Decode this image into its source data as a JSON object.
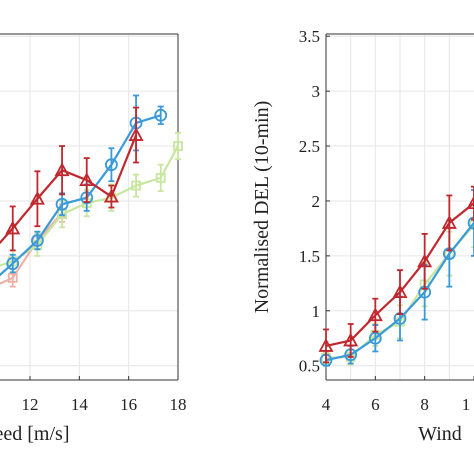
{
  "chart_data": [
    {
      "type": "line",
      "title": "",
      "xlabel": "eed [m/s]",
      "ylabel": "",
      "xlim": [
        8.3,
        18
      ],
      "ylim": [
        0.37,
        3.52
      ],
      "xticks": [
        "12",
        "14",
        "16",
        "18"
      ],
      "yticks": [],
      "grid": true,
      "series": [
        {
          "color": "#f0b0a8",
          "marker": "square",
          "points": [
            [
              10.3,
              1.2
            ],
            [
              11.3,
              1.3
            ],
            [
              12.3,
              1.64
            ],
            [
              13.3,
              1.89
            ]
          ],
          "err": [
            0.08,
            0.08,
            0.08,
            0.08
          ]
        },
        {
          "color": "#c8e6a0",
          "marker": "square",
          "points": [
            [
              10.3,
              1.38
            ],
            [
              11.3,
              1.45
            ],
            [
              12.3,
              1.6
            ],
            [
              13.3,
              1.88
            ],
            [
              14.3,
              1.98
            ],
            [
              15.3,
              2.03
            ],
            [
              16.3,
              2.14
            ],
            [
              17.3,
              2.21
            ],
            [
              18.0,
              2.5
            ]
          ],
          "err": [
            0.1,
            0.1,
            0.1,
            0.12,
            0.12,
            0.12,
            0.1,
            0.12,
            0.12
          ]
        },
        {
          "color": "#3a9ad9",
          "marker": "circle",
          "points": [
            [
              10.3,
              1.23
            ],
            [
              11.3,
              1.43
            ],
            [
              12.3,
              1.64
            ],
            [
              13.3,
              1.97
            ],
            [
              14.3,
              2.03
            ],
            [
              15.3,
              2.33
            ],
            [
              16.3,
              2.71
            ],
            [
              17.3,
              2.78
            ]
          ],
          "err": [
            0.08,
            0.08,
            0.08,
            0.1,
            0.12,
            0.15,
            0.25,
            0.08
          ]
        },
        {
          "color": "#c0282e",
          "marker": "triangle",
          "points": [
            [
              10.3,
              1.5
            ],
            [
              11.3,
              1.75
            ],
            [
              12.3,
              2.02
            ],
            [
              13.3,
              2.28
            ],
            [
              14.3,
              2.19
            ],
            [
              15.3,
              2.04
            ],
            [
              16.3,
              2.6
            ]
          ],
          "err": [
            0.15,
            0.2,
            0.25,
            0.22,
            0.2,
            0.1,
            0.25
          ]
        }
      ]
    },
    {
      "type": "line",
      "title": "",
      "xlabel": "Wind",
      "ylabel": "Normalised DEL  (10-min)",
      "xlim": [
        3.85,
        11.3
      ],
      "ylim": [
        0.37,
        3.52
      ],
      "xticks": [
        "4",
        "6",
        "8",
        "1"
      ],
      "yticks": [
        "0.5",
        "1",
        "1.5",
        "2",
        "2.5",
        "3",
        "3.5"
      ],
      "grid": true,
      "series": [
        {
          "color": "#c8e6a0",
          "marker": "square",
          "points": [
            [
              4,
              0.57
            ],
            [
              5,
              0.58
            ],
            [
              6,
              0.78
            ],
            [
              7,
              0.9
            ],
            [
              8,
              1.24
            ],
            [
              9,
              1.52
            ],
            [
              10,
              1.78
            ],
            [
              11,
              1.9
            ]
          ],
          "err": [
            0.05,
            0.07,
            0.1,
            0.15,
            0.2,
            0.2,
            0.2,
            0.2
          ]
        },
        {
          "color": "#3a9ad9",
          "marker": "circle",
          "points": [
            [
              4,
              0.55
            ],
            [
              5,
              0.6
            ],
            [
              6,
              0.75
            ],
            [
              7,
              0.93
            ],
            [
              8,
              1.17
            ],
            [
              9,
              1.52
            ],
            [
              10,
              1.8
            ],
            [
              11,
              1.9
            ]
          ],
          "err": [
            0.05,
            0.08,
            0.12,
            0.2,
            0.25,
            0.3,
            0.3,
            0.25
          ]
        },
        {
          "color": "#c0282e",
          "marker": "triangle",
          "points": [
            [
              4,
              0.68
            ],
            [
              5,
              0.73
            ],
            [
              6,
              0.96
            ],
            [
              7,
              1.17
            ],
            [
              8,
              1.45
            ],
            [
              9,
              1.8
            ],
            [
              10,
              1.98
            ],
            [
              11,
              2.05
            ]
          ],
          "err": [
            0.15,
            0.15,
            0.15,
            0.2,
            0.25,
            0.25,
            0.15,
            0.2
          ]
        }
      ]
    }
  ]
}
